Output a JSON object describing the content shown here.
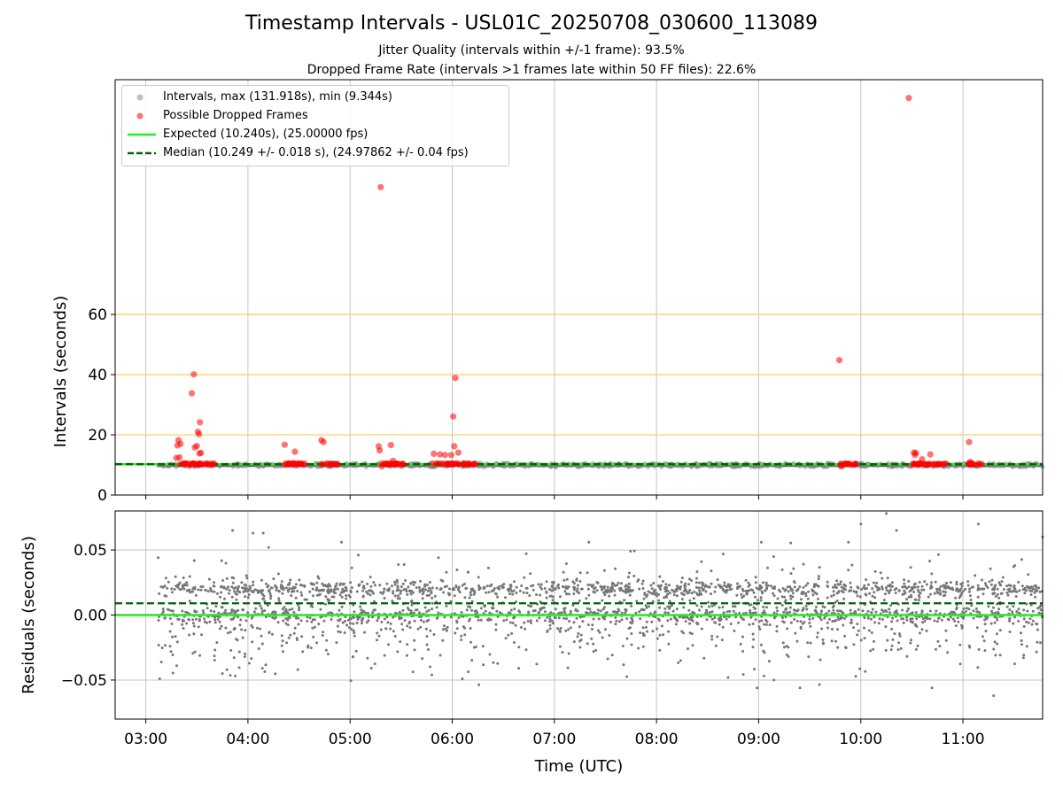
{
  "chart_data": [
    {
      "type": "scatter",
      "title": "Timestamp Intervals - USL01C_20250708_030600_113089",
      "subtitles": [
        "Jitter Quality (intervals within +/-1 frame): 93.5%",
        "Dropped Frame Rate (intervals >1 frames late within 50 FF files): 22.6%"
      ],
      "xlabel": "",
      "ylabel": "Intervals (seconds)",
      "xlim": [
        2.7,
        11.78
      ],
      "ylim": [
        0,
        138
      ],
      "yticks": [
        0,
        20,
        40,
        60
      ],
      "yticklabels": [
        "0",
        "20",
        "40",
        "60"
      ],
      "hlines_orange": [
        20,
        40,
        60
      ],
      "grid": "x gridlines; orange horizontal lines at 20, 40, 60",
      "legend_position": "top-left",
      "colors": {
        "intervals": "#808080",
        "dropped": "#ff0000",
        "expected": "#22ee22",
        "median": "#006400",
        "hline": "#ffd060"
      },
      "series": [
        {
          "name": "Intervals, max (131.918s), min (9.344s)",
          "kind": "band",
          "x_range": [
            3.12,
            11.78
          ],
          "y_range": [
            9.344,
            10.6
          ]
        },
        {
          "name": "Possible Dropped Frames",
          "kind": "points",
          "points": [
            [
              3.3,
              12.3
            ],
            [
              3.31,
              16.5
            ],
            [
              3.32,
              18.2
            ],
            [
              3.33,
              12.5
            ],
            [
              3.34,
              17.0
            ],
            [
              3.45,
              33.8
            ],
            [
              3.47,
              40.1
            ],
            [
              3.48,
              15.8
            ],
            [
              3.5,
              16.3
            ],
            [
              3.51,
              21.0
            ],
            [
              3.52,
              20.2
            ],
            [
              3.525,
              13.8
            ],
            [
              3.53,
              24.2
            ],
            [
              3.54,
              14.0
            ],
            [
              4.36,
              16.7
            ],
            [
              4.46,
              14.4
            ],
            [
              4.72,
              18.2
            ],
            [
              4.74,
              17.6
            ],
            [
              5.28,
              16.2
            ],
            [
              5.29,
              14.8
            ],
            [
              5.3,
              102.3
            ],
            [
              5.31,
              9.5
            ],
            [
              5.4,
              16.6
            ],
            [
              5.42,
              11.4
            ],
            [
              5.82,
              13.7
            ],
            [
              5.88,
              13.5
            ],
            [
              5.93,
              13.3
            ],
            [
              5.99,
              13.3
            ],
            [
              6.01,
              26.1
            ],
            [
              6.02,
              16.2
            ],
            [
              6.03,
              38.9
            ],
            [
              6.06,
              14.1
            ],
            [
              9.79,
              44.8
            ],
            [
              9.81,
              9.5
            ],
            [
              10.47,
              131.9
            ],
            [
              10.52,
              14.1
            ],
            [
              10.53,
              13.3
            ],
            [
              10.54,
              14.0
            ],
            [
              10.6,
              11.9
            ],
            [
              10.68,
              13.5
            ],
            [
              11.06,
              17.6
            ],
            [
              11.07,
              11.0
            ]
          ],
          "clusters": [
            [
              3.3,
              3.67
            ],
            [
              4.35,
              4.6
            ],
            [
              4.72,
              4.88
            ],
            [
              5.3,
              5.55
            ],
            [
              5.8,
              6.22
            ],
            [
              9.8,
              9.96
            ],
            [
              10.5,
              10.84
            ],
            [
              11.05,
              11.2
            ]
          ],
          "cluster_value": 10.3
        },
        {
          "name": "Expected (10.240s), (25.00000 fps)",
          "kind": "hline",
          "y": 10.24
        },
        {
          "name": "Median (10.249 +/- 0.018 s), (24.97862 +/- 0.04 fps)",
          "kind": "hline_dashed",
          "y": 10.249
        }
      ]
    },
    {
      "type": "scatter",
      "title": "",
      "xlabel": "Time (UTC)",
      "ylabel": "Residuals (seconds)",
      "xlim": [
        2.7,
        11.78
      ],
      "ylim": [
        -0.08,
        0.08
      ],
      "xticks": [
        3,
        4,
        5,
        6,
        7,
        8,
        9,
        10,
        11
      ],
      "xticklabels": [
        "03:00",
        "04:00",
        "05:00",
        "06:00",
        "07:00",
        "08:00",
        "09:00",
        "10:00",
        "11:00"
      ],
      "yticks": [
        -0.05,
        0.0,
        0.05
      ],
      "yticklabels": [
        "−0.05",
        "0.00",
        "0.05"
      ],
      "grid": "on",
      "residual_x_range": [
        3.12,
        11.78
      ],
      "residual_count": 2600,
      "residual_levels": [
        {
          "value": 0.02,
          "weight": 0.33,
          "spread": 0.003
        },
        {
          "value": 0.0,
          "weight": 0.25,
          "spread": 0.003
        },
        {
          "value": 0.0,
          "weight": 0.42,
          "spread": 0.02
        }
      ],
      "outliers": [
        [
          3.85,
          0.065
        ],
        [
          4.05,
          0.063
        ],
        [
          4.15,
          0.063
        ],
        [
          3.75,
          -0.045
        ],
        [
          5.8,
          -0.046
        ],
        [
          6.1,
          -0.049
        ],
        [
          8.7,
          -0.048
        ],
        [
          9.15,
          -0.05
        ],
        [
          10.0,
          0.07
        ],
        [
          10.25,
          0.078
        ],
        [
          11.3,
          -0.062
        ],
        [
          11.15,
          0.07
        ],
        [
          11.78,
          0.06
        ],
        [
          10.35,
          0.065
        ]
      ],
      "expected_y": 0.0,
      "median_y": 0.009
    }
  ],
  "legend": {
    "items": [
      {
        "label": "Intervals, max (131.918s), min (9.344s)"
      },
      {
        "label": "Possible Dropped Frames"
      },
      {
        "label": "Expected (10.240s), (25.00000 fps)"
      },
      {
        "label": "Median (10.249 +/- 0.018 s), (24.97862 +/- 0.04 fps)"
      }
    ]
  }
}
